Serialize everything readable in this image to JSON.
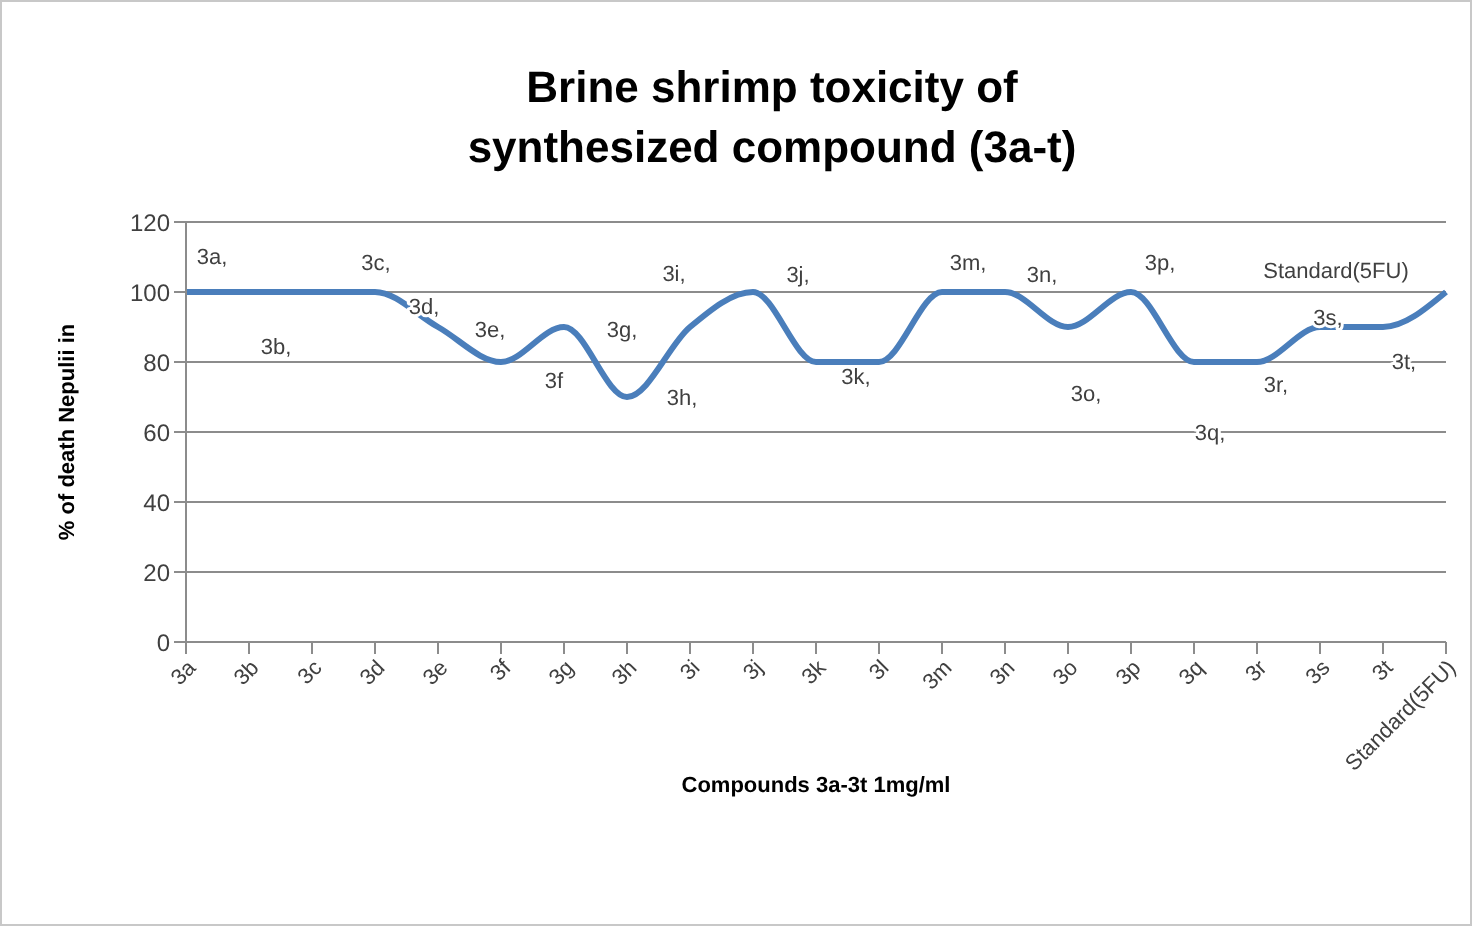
{
  "chart_data": {
    "type": "line",
    "title": "Brine shrimp toxicity of synthesized compound (3a-t)",
    "xlabel": "Compounds 3a-3t 1mg/ml",
    "ylabel": "% of death Nepulii in",
    "categories": [
      "3a",
      "3b",
      "3c",
      "3d",
      "3e",
      "3f",
      "3g",
      "3h",
      "3i",
      "3j",
      "3k",
      "3l",
      "3m",
      "3n",
      "3o",
      "3p",
      "3q",
      "3r",
      "3s",
      "3t",
      "Standard(5FU)"
    ],
    "series": [
      {
        "color": "#4a7ebb",
        "values": [
          100,
          100,
          100,
          100,
          90,
          80,
          90,
          70,
          90,
          100,
          80,
          80,
          100,
          100,
          90,
          100,
          80,
          80,
          90,
          90,
          100
        ]
      }
    ],
    "ylim": [
      0,
      120
    ],
    "yticks": [
      0,
      20,
      40,
      60,
      80,
      100,
      120
    ],
    "grid": "y",
    "legend": false,
    "marker": "none",
    "line_style": "solid",
    "annotations": [
      {
        "text": "3a,",
        "x": "3a",
        "y": 100
      },
      {
        "text": "3b,",
        "x": "3b",
        "y": 100
      },
      {
        "text": "3c,",
        "x": "3c",
        "y": 100
      },
      {
        "text": "3d,",
        "x": "3d",
        "y": 100
      },
      {
        "text": "3e,",
        "x": "3e",
        "y": 90
      },
      {
        "text": "3f",
        "x": "3f",
        "y": 80
      },
      {
        "text": "3g,",
        "x": "3g",
        "y": 90
      },
      {
        "text": "3h,",
        "x": "3h",
        "y": 70
      },
      {
        "text": "3i,",
        "x": "3i",
        "y": 90
      },
      {
        "text": "3j,",
        "x": "3j",
        "y": 100
      },
      {
        "text": "3k,",
        "x": "3k",
        "y": 80
      },
      {
        "text": "3m,",
        "x": "3m",
        "y": 100
      },
      {
        "text": "3n,",
        "x": "3n",
        "y": 100
      },
      {
        "text": "3o,",
        "x": "3o",
        "y": 90
      },
      {
        "text": "3p,",
        "x": "3p",
        "y": 100
      },
      {
        "text": "3q,",
        "x": "3q",
        "y": 80
      },
      {
        "text": "3r,",
        "x": "3r",
        "y": 80
      },
      {
        "text": "3s,",
        "x": "3s",
        "y": 90
      },
      {
        "text": "3t,",
        "x": "3t",
        "y": 90
      },
      {
        "text": "Standard(5FU)",
        "x": "Standard(5FU)",
        "y": 100
      }
    ]
  }
}
